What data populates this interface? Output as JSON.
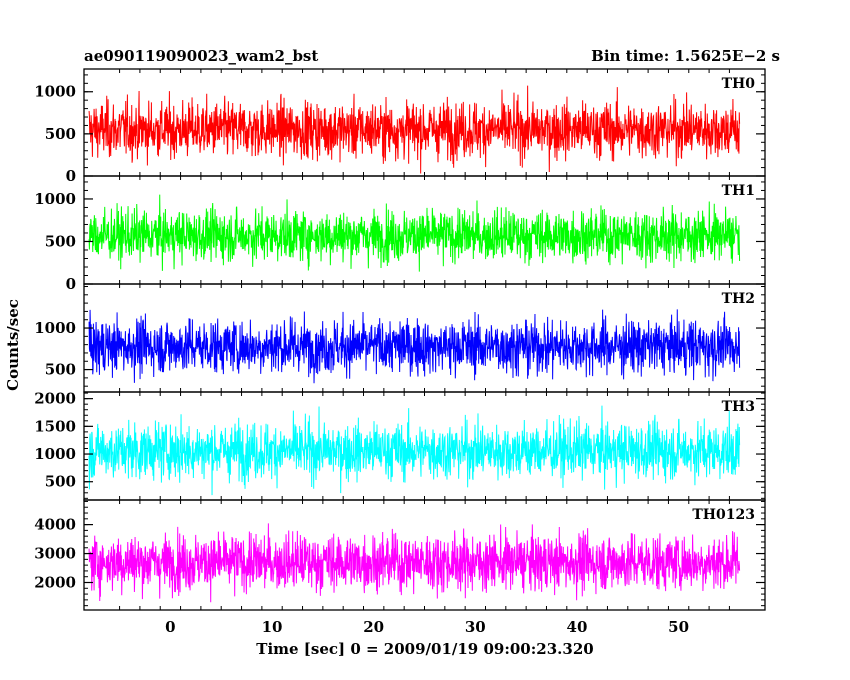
{
  "header": {
    "title_left": "ae090119090023_wam2_bst",
    "title_right": "Bin time: 1.5625E−2 s"
  },
  "chart_data": {
    "type": "line",
    "xlabel": "Time [sec] 0 = 2009/01/19 09:00:23.320",
    "ylabel": "Counts/sec",
    "xlim": [
      -8.5,
      58.5
    ],
    "xticks": [
      0,
      10,
      20,
      30,
      40,
      50
    ],
    "x_start": -8.0,
    "x_end": 56.0,
    "grid": false,
    "panels": [
      {
        "name": "TH0",
        "color": "#ff0000",
        "ylim": [
          0,
          1270
        ],
        "yticks": [
          0,
          500,
          1000
        ],
        "min_est": 30,
        "max_est": 1250,
        "mean_est": 550
      },
      {
        "name": "TH1",
        "color": "#00ff00",
        "ylim": [
          0,
          1270
        ],
        "yticks": [
          0,
          500,
          1000
        ],
        "min_est": 80,
        "max_est": 1180,
        "mean_est": 570
      },
      {
        "name": "TH2",
        "color": "#0000ff",
        "ylim": [
          230,
          1530
        ],
        "yticks": [
          500,
          1000
        ],
        "min_est": 280,
        "max_est": 1480,
        "mean_est": 780
      },
      {
        "name": "TH3",
        "color": "#00ffff",
        "ylim": [
          170,
          2120
        ],
        "yticks": [
          500,
          1000,
          1500,
          2000
        ],
        "min_est": 220,
        "max_est": 2080,
        "mean_est": 1060
      },
      {
        "name": "TH0123",
        "color": "#ff00ff",
        "ylim": [
          1050,
          4850
        ],
        "yticks": [
          2000,
          3000,
          4000
        ],
        "min_est": 1120,
        "max_est": 4700,
        "mean_est": 2700
      }
    ]
  }
}
